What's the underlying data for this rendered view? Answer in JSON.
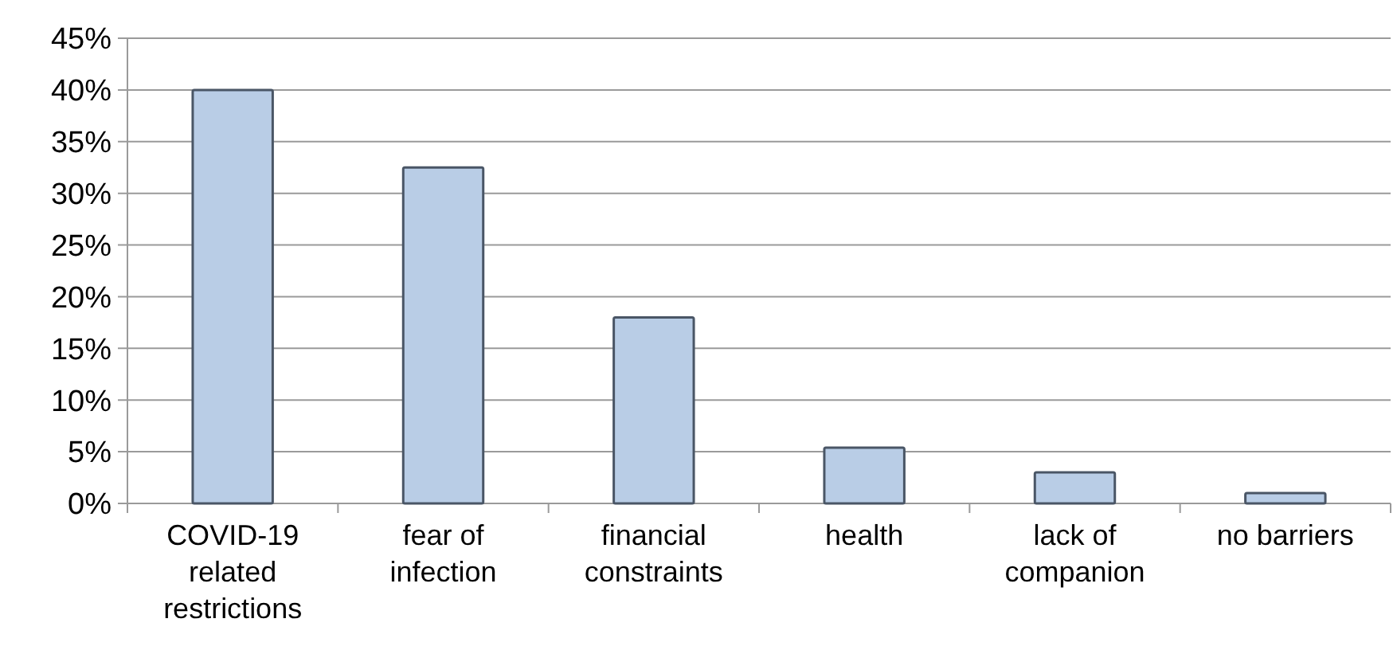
{
  "chart_data": {
    "type": "bar",
    "categories": [
      "COVID-19 related restrictions",
      "fear of infection",
      "financial constraints",
      "health",
      "lack of companion",
      "no barriers"
    ],
    "values": [
      40,
      32.5,
      18,
      5.4,
      3,
      1
    ],
    "color": "#b9cde6",
    "ylim": [
      0,
      45
    ],
    "yticks": [
      {
        "value": 0,
        "label": "0%"
      },
      {
        "value": 5,
        "label": "5%"
      },
      {
        "value": 10,
        "label": "10%"
      },
      {
        "value": 15,
        "label": "15%"
      },
      {
        "value": 20,
        "label": "20%"
      },
      {
        "value": 25,
        "label": "25%"
      },
      {
        "value": 30,
        "label": "30%"
      },
      {
        "value": 35,
        "label": "35%"
      },
      {
        "value": 40,
        "label": "40%"
      },
      {
        "value": 45,
        "label": "45%"
      }
    ],
    "grid": "y"
  }
}
